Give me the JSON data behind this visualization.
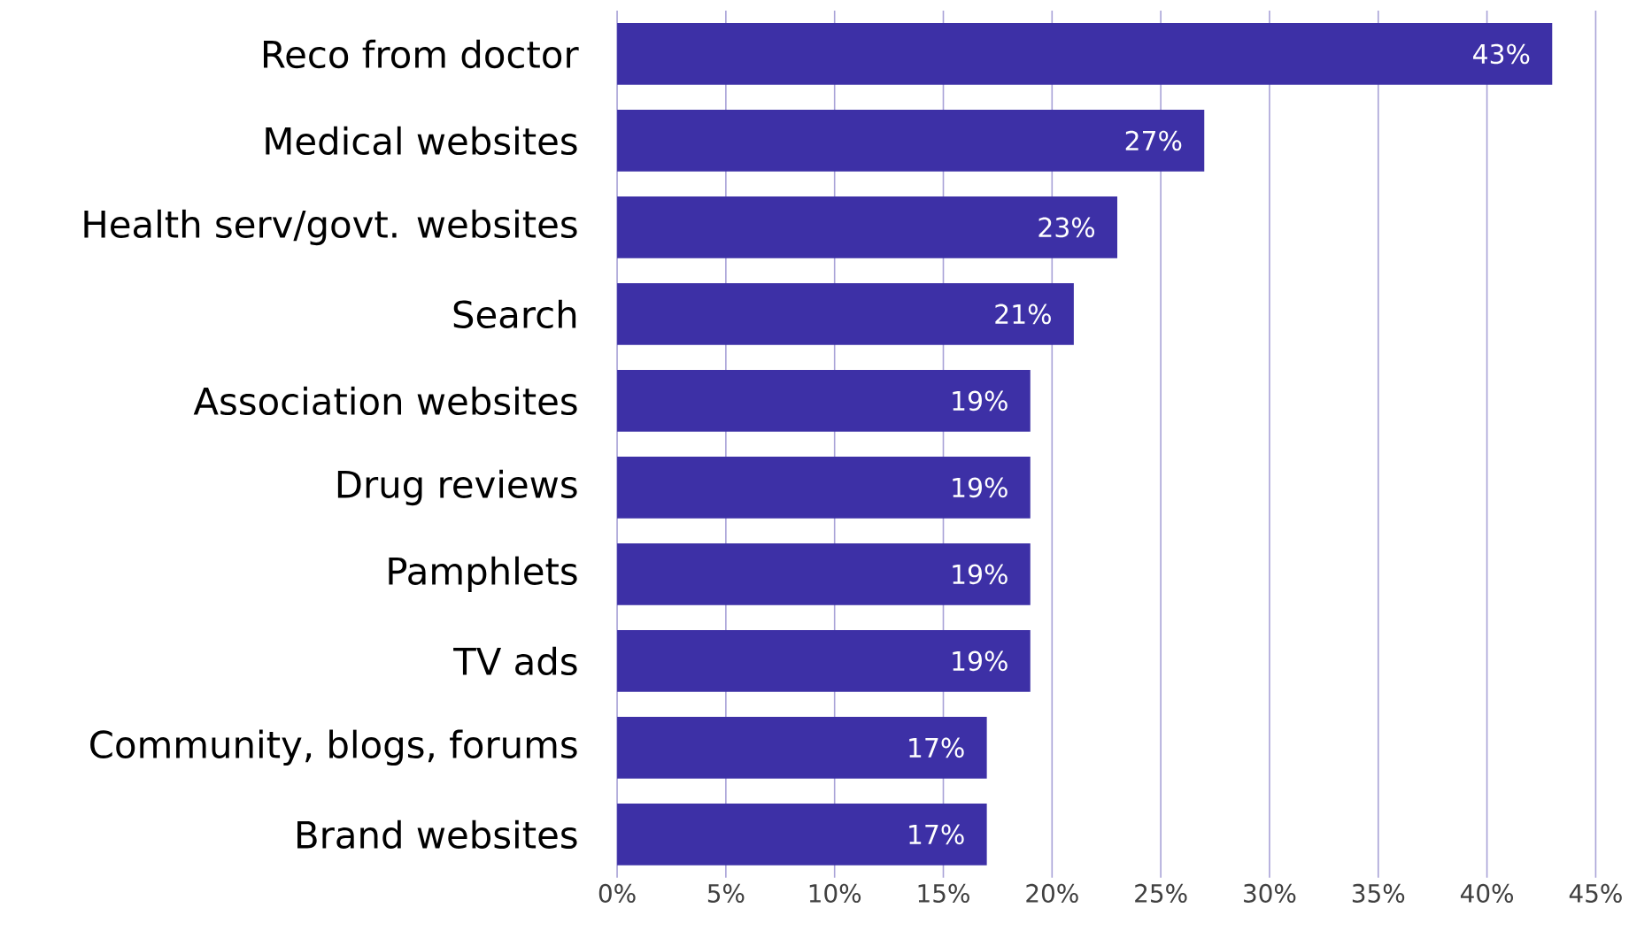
{
  "chart_data": {
    "type": "bar",
    "orientation": "horizontal",
    "categories": [
      "Reco from doctor",
      "Medical websites",
      "Health serv/govt. websites",
      "Search",
      "Association websites",
      "Drug reviews",
      "Pamphlets",
      "TV ads",
      "Community, blogs, forums",
      "Brand websites"
    ],
    "values": [
      43,
      27,
      23,
      21,
      19,
      19,
      19,
      19,
      17,
      17
    ],
    "value_labels": [
      "43%",
      "27%",
      "23%",
      "21%",
      "19%",
      "19%",
      "19%",
      "19%",
      "17%",
      "17%"
    ],
    "color": "#3d30a6",
    "xlim": [
      0,
      45
    ],
    "xticks": [
      {
        "value": 0,
        "label": "0%"
      },
      {
        "value": 5,
        "label": "5%"
      },
      {
        "value": 10,
        "label": "10%"
      },
      {
        "value": 15,
        "label": "15%"
      },
      {
        "value": 20,
        "label": "20%"
      },
      {
        "value": 25,
        "label": "25%"
      },
      {
        "value": 30,
        "label": "30%"
      },
      {
        "value": 35,
        "label": "35%"
      },
      {
        "value": 40,
        "label": "40%"
      },
      {
        "value": 45,
        "label": "45%"
      }
    ],
    "grid": "x"
  }
}
